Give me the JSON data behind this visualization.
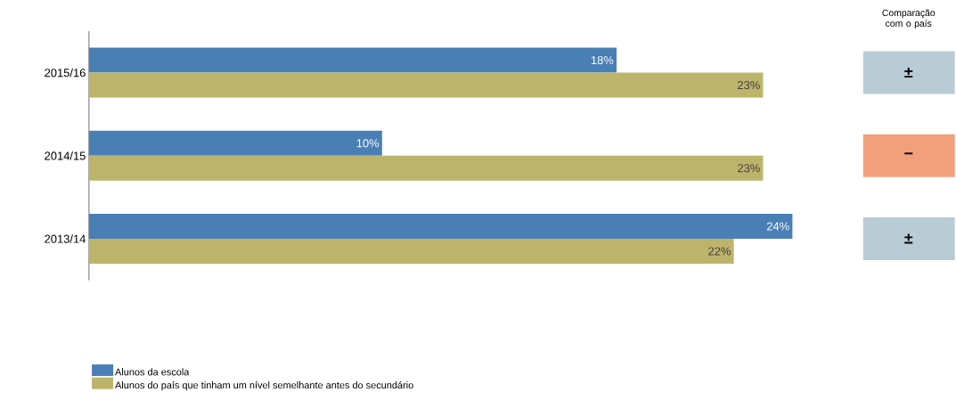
{
  "chart_data": {
    "type": "bar",
    "orientation": "horizontal",
    "categories": [
      "2015/16",
      "2014/15",
      "2013/14"
    ],
    "series": [
      {
        "name": "Alunos da escola",
        "color": "#4a7fb5",
        "values": [
          18,
          10,
          24
        ],
        "value_labels": [
          "18%",
          "10%",
          "24%"
        ]
      },
      {
        "name": "Alunos do país que tinham um nível semelhante antes do secundário",
        "color": "#bdb46c",
        "values": [
          23,
          23,
          22
        ],
        "value_labels": [
          "23%",
          "23%",
          "22%"
        ]
      }
    ],
    "tick_labels": "y",
    "legend": "bottom left",
    "annotations": [
      "Comparação com o país",
      "±",
      "−",
      "±"
    ]
  }
}
